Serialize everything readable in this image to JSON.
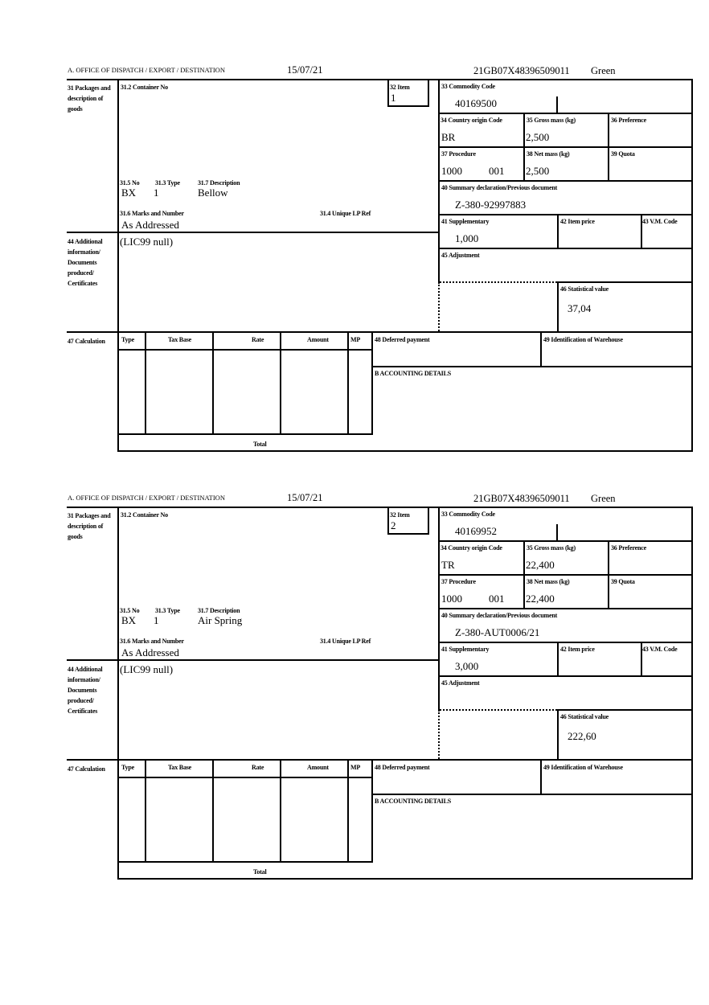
{
  "labels": {
    "office": "A. OFFICE OF DISPATCH / EXPORT / DESTINATION",
    "packages": "31 Packages and description of goods",
    "container_no": "31.2 Container No",
    "item": "32 Item",
    "no": "31.5 No",
    "type": "31.3 Type",
    "description": "31.7 Description",
    "marks": "31.6 Marks and Number",
    "unique_ref": "31.4 Unique LP Ref",
    "commodity_code": "33 Commodity Code",
    "country_origin": "34 Country origin Code",
    "gross_mass": "35 Gross mass (kg)",
    "preference": "36 Preference",
    "procedure": "37 Procedure",
    "net_mass": "38 Net mass (kg)",
    "quota": "39 Quota",
    "summary_decl": "40 Summary declaration/Previous document",
    "supplementary": "41 Supplementary",
    "item_price": "42 Item price",
    "vm_code": "43 V.M. Code",
    "adjustment": "45 Adjustment",
    "statistical_value": "46 Statistical value",
    "additional_info": "44 Additional information/ Documents produced/ Certificates",
    "calculation": "47 Calculation",
    "calc_type": "Type",
    "calc_tax_base": "Tax Base",
    "calc_rate": "Rate",
    "calc_amount": "Amount",
    "calc_mp": "MP",
    "total": "Total",
    "deferred_payment": "48 Deferred payment",
    "warehouse": "49 Identification of Warehouse",
    "accounting": "B ACCOUNTING DETAILS"
  },
  "items": [
    {
      "date": "15/07/21",
      "reference": "21GB07X48396509011",
      "route": "Green",
      "item_no": "1",
      "no": "BX",
      "type": "1",
      "description": "Bellow",
      "marks": "As Addressed",
      "commodity_code": "40169500",
      "country_origin": "BR",
      "gross_mass": "2,500",
      "procedure": "1000",
      "procedure_add": "001",
      "net_mass": "2,500",
      "summary_decl": "Z-380-92997883",
      "supplementary": "1,000",
      "statistical_value": "37,04",
      "additional_info": "(LIC99 null)"
    },
    {
      "date": "15/07/21",
      "reference": "21GB07X48396509011",
      "route": "Green",
      "item_no": "2",
      "no": "BX",
      "type": "1",
      "description": "Air Spring",
      "marks": "As Addressed",
      "commodity_code": "40169952",
      "country_origin": "TR",
      "gross_mass": "22,400",
      "procedure": "1000",
      "procedure_add": "001",
      "net_mass": "22,400",
      "summary_decl": "Z-380-AUT0006/21",
      "supplementary": "3,000",
      "statistical_value": "222,60",
      "additional_info": "(LIC99 null)"
    }
  ]
}
